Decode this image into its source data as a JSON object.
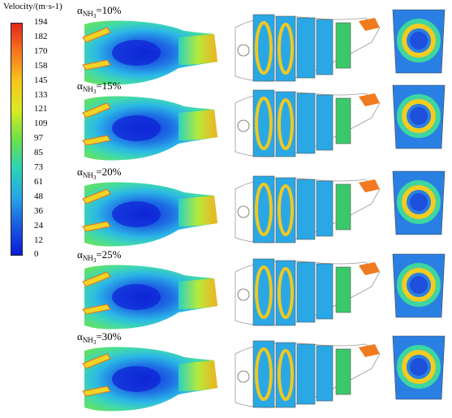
{
  "legend": {
    "title": "Velocity/(m·s-1)",
    "ticks": [
      "194",
      "182",
      "170",
      "158",
      "145",
      "133",
      "121",
      "109",
      "97",
      "85",
      "73",
      "61",
      "48",
      "36",
      "24",
      "12",
      "0"
    ],
    "colors": [
      "#e3261c",
      "#f7781e",
      "#f7c61d",
      "#d9ea22",
      "#6ee04a",
      "#2bd3b6",
      "#27a6e6",
      "#1a5ae0",
      "#0c1ad8"
    ]
  },
  "rows": [
    {
      "alpha": "α",
      "sub": "NH",
      "subsub": "3",
      "value": "=10%"
    },
    {
      "alpha": "α",
      "sub": "NH",
      "subsub": "3",
      "value": "=15%"
    },
    {
      "alpha": "α",
      "sub": "NH",
      "subsub": "3",
      "value": "=20%"
    },
    {
      "alpha": "α",
      "sub": "NH",
      "subsub": "3",
      "value": "=25%"
    },
    {
      "alpha": "α",
      "sub": "NH",
      "subsub": "3",
      "value": "=30%"
    }
  ]
}
